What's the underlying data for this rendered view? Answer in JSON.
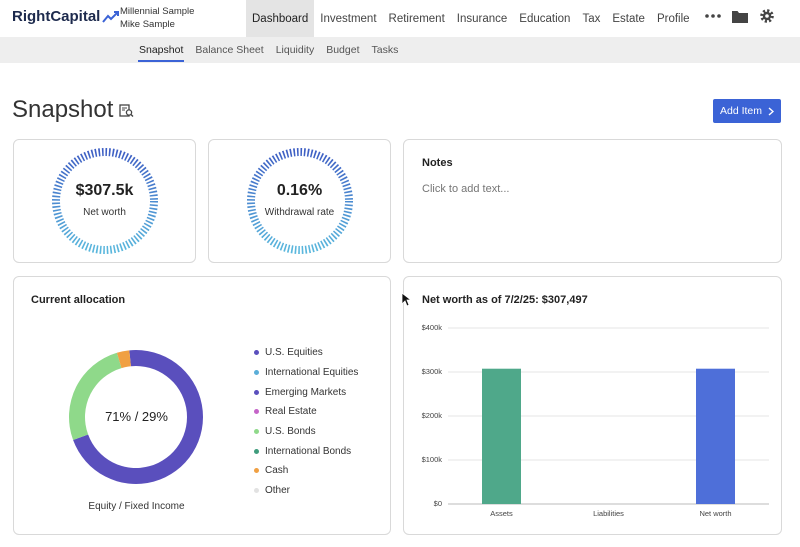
{
  "app": {
    "logo_text": "RightCapital",
    "client_line1": "Millennial Sample",
    "client_line2": "Mike Sample"
  },
  "nav": {
    "items": [
      {
        "label": "Dashboard",
        "active": true
      },
      {
        "label": "Investment"
      },
      {
        "label": "Retirement"
      },
      {
        "label": "Insurance"
      },
      {
        "label": "Education"
      },
      {
        "label": "Tax"
      },
      {
        "label": "Estate"
      },
      {
        "label": "Profile"
      }
    ],
    "icons": [
      "more-icon",
      "folder-icon",
      "gear-icon"
    ]
  },
  "subnav": {
    "items": [
      {
        "label": "Snapshot",
        "active": true
      },
      {
        "label": "Balance Sheet"
      },
      {
        "label": "Liquidity"
      },
      {
        "label": "Budget"
      },
      {
        "label": "Tasks"
      }
    ]
  },
  "page": {
    "title": "Snapshot",
    "add_button": "Add Item"
  },
  "metrics": {
    "net_worth": {
      "value": "$307.5k",
      "label": "Net worth"
    },
    "withdrawal_rate": {
      "value": "0.16%",
      "label": "Withdrawal rate"
    }
  },
  "notes": {
    "title": "Notes",
    "placeholder": "Click to add text..."
  },
  "allocation": {
    "title": "Current allocation",
    "center_text": "71% / 29%",
    "caption": "Equity / Fixed Income",
    "legend": [
      {
        "label": "U.S. Equities",
        "color": "#5a4fbd"
      },
      {
        "label": "International Equities",
        "color": "#5aaed8"
      },
      {
        "label": "Emerging Markets",
        "color": "#5a4fbd"
      },
      {
        "label": "Real Estate",
        "color": "#c564c8"
      },
      {
        "label": "U.S. Bonds",
        "color": "#8fd98a"
      },
      {
        "label": "International Bonds",
        "color": "#3f9c7c"
      },
      {
        "label": "Cash",
        "color": "#f0a043"
      },
      {
        "label": "Other",
        "color": "#e2e2e2"
      }
    ],
    "segments": [
      {
        "name": "U.S. Equities",
        "percent": 71,
        "color": "#5a4fbd"
      },
      {
        "name": "U.S. Bonds",
        "percent": 26,
        "color": "#8fd98a"
      },
      {
        "name": "Cash",
        "percent": 3,
        "color": "#f0a043"
      }
    ]
  },
  "chart_data": {
    "type": "bar",
    "title": "Net worth as of 7/2/25: $307,497",
    "categories": [
      "Assets",
      "Liabilities",
      "Net worth"
    ],
    "values": [
      307497,
      0,
      307497
    ],
    "colors": [
      "#4fa88a",
      "#4fa88a",
      "#4e6fd9"
    ],
    "ylim": [
      0,
      400000
    ],
    "yticks": [
      0,
      100000,
      200000,
      300000,
      400000
    ],
    "ytick_labels": [
      "$0",
      "$100k",
      "$200k",
      "$300k",
      "$400k"
    ],
    "grid": true
  }
}
